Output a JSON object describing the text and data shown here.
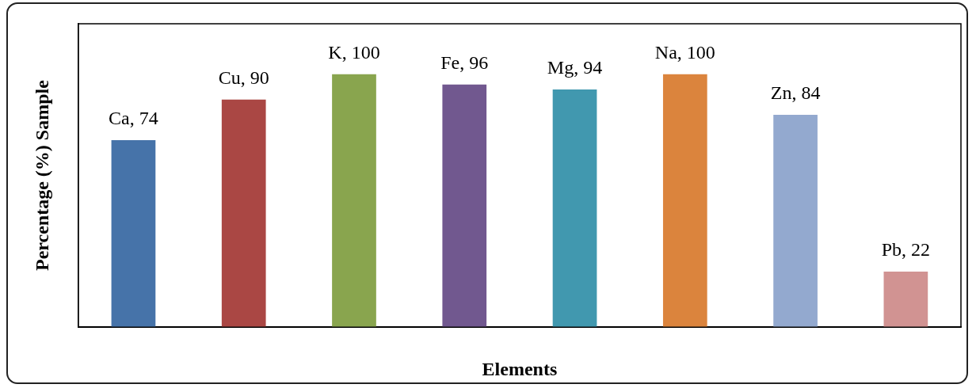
{
  "chart_data": {
    "type": "bar",
    "xlabel": "Elements",
    "ylabel": "Percentage (%) Sample",
    "categories": [
      null,
      null,
      null,
      null,
      null,
      null,
      null,
      null
    ],
    "values": [
      74,
      90,
      100,
      96,
      94,
      100,
      84,
      22
    ],
    "value_labels": [
      "Ca, 74",
      "Cu, 90",
      "K, 100",
      "Fe, 96",
      "Mg, 94",
      "Na, 100",
      "Zn, 84",
      "Pb, 22"
    ],
    "colors": [
      "#4673a9",
      "#aa4744",
      "#89a54e",
      "#71588f",
      "#4198af",
      "#db843d",
      "#93a9cf",
      "#d19392"
    ],
    "ylim": [
      0,
      120
    ],
    "tick_labels": false,
    "grid": false,
    "legend": false
  }
}
